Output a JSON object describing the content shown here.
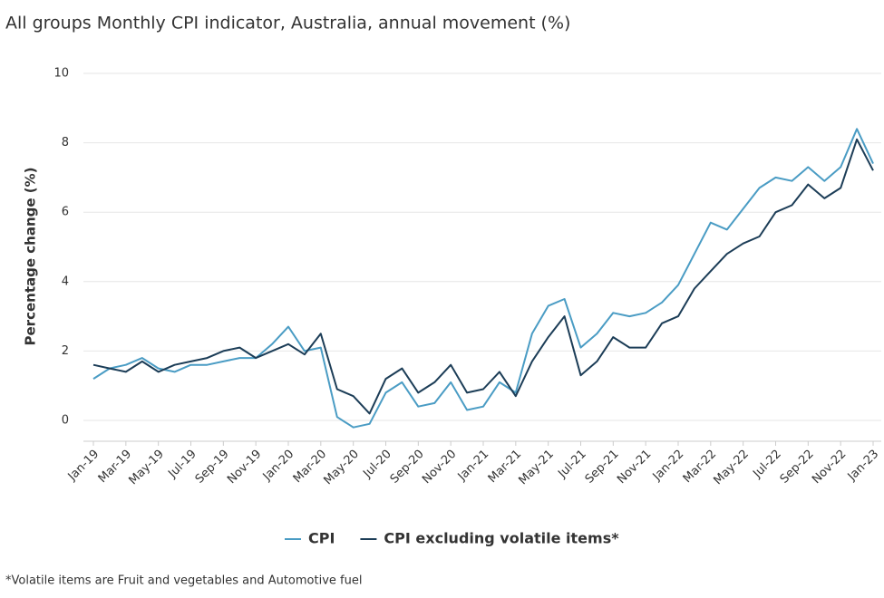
{
  "chart_data": {
    "type": "line",
    "title": "All groups Monthly CPI indicator, Australia, annual movement (%)",
    "y_label": "Percentage change (%)",
    "footnote": "*Volatile items are Fruit and vegetables and Automotive fuel",
    "categories": [
      "Jan-19",
      null,
      "Mar-19",
      null,
      "May-19",
      null,
      "Jul-19",
      null,
      "Sep-19",
      null,
      "Nov-19",
      null,
      "Jan-20",
      null,
      "Mar-20",
      null,
      "May-20",
      null,
      "Jul-20",
      null,
      "Sep-20",
      null,
      "Nov-20",
      null,
      "Jan-21",
      null,
      "Mar-21",
      null,
      "May-21",
      null,
      "Jul-21",
      null,
      "Sep-21",
      null,
      "Nov-21",
      null,
      "Jan-22",
      null,
      "Mar-22",
      null,
      "May-22",
      null,
      "Jul-22",
      null,
      "Sep-22",
      null,
      "Nov-22",
      null,
      "Jan-23"
    ],
    "series": [
      {
        "name": "CPI",
        "color": "#4a9cc4",
        "values": [
          1.2,
          1.5,
          1.6,
          1.8,
          1.5,
          1.4,
          1.6,
          1.6,
          1.7,
          1.8,
          1.8,
          2.2,
          2.7,
          2.0,
          2.1,
          0.1,
          -0.2,
          -0.1,
          0.8,
          1.1,
          0.4,
          0.5,
          1.1,
          0.3,
          0.4,
          1.1,
          0.8,
          2.5,
          3.3,
          3.5,
          2.1,
          2.5,
          3.1,
          3.0,
          3.1,
          3.4,
          3.9,
          4.8,
          5.7,
          5.5,
          6.1,
          6.7,
          7.0,
          6.9,
          7.3,
          6.9,
          7.3,
          8.4,
          7.4
        ]
      },
      {
        "name": "CPI excluding volatile items*",
        "color": "#1c3d57",
        "values": [
          1.6,
          1.5,
          1.4,
          1.7,
          1.4,
          1.6,
          1.7,
          1.8,
          2.0,
          2.1,
          1.8,
          2.0,
          2.2,
          1.9,
          2.5,
          0.9,
          0.7,
          0.2,
          1.2,
          1.5,
          0.8,
          1.1,
          1.6,
          0.8,
          0.9,
          1.4,
          0.7,
          1.7,
          2.4,
          3.0,
          1.3,
          1.7,
          2.4,
          2.1,
          2.1,
          2.8,
          3.0,
          3.8,
          4.3,
          4.8,
          5.1,
          5.3,
          6.0,
          6.2,
          6.8,
          6.4,
          6.7,
          8.1,
          7.2
        ]
      }
    ],
    "ylim": [
      -0.6,
      10
    ],
    "yticks": [
      0,
      2,
      4,
      6,
      8,
      10
    ],
    "grid": true
  }
}
